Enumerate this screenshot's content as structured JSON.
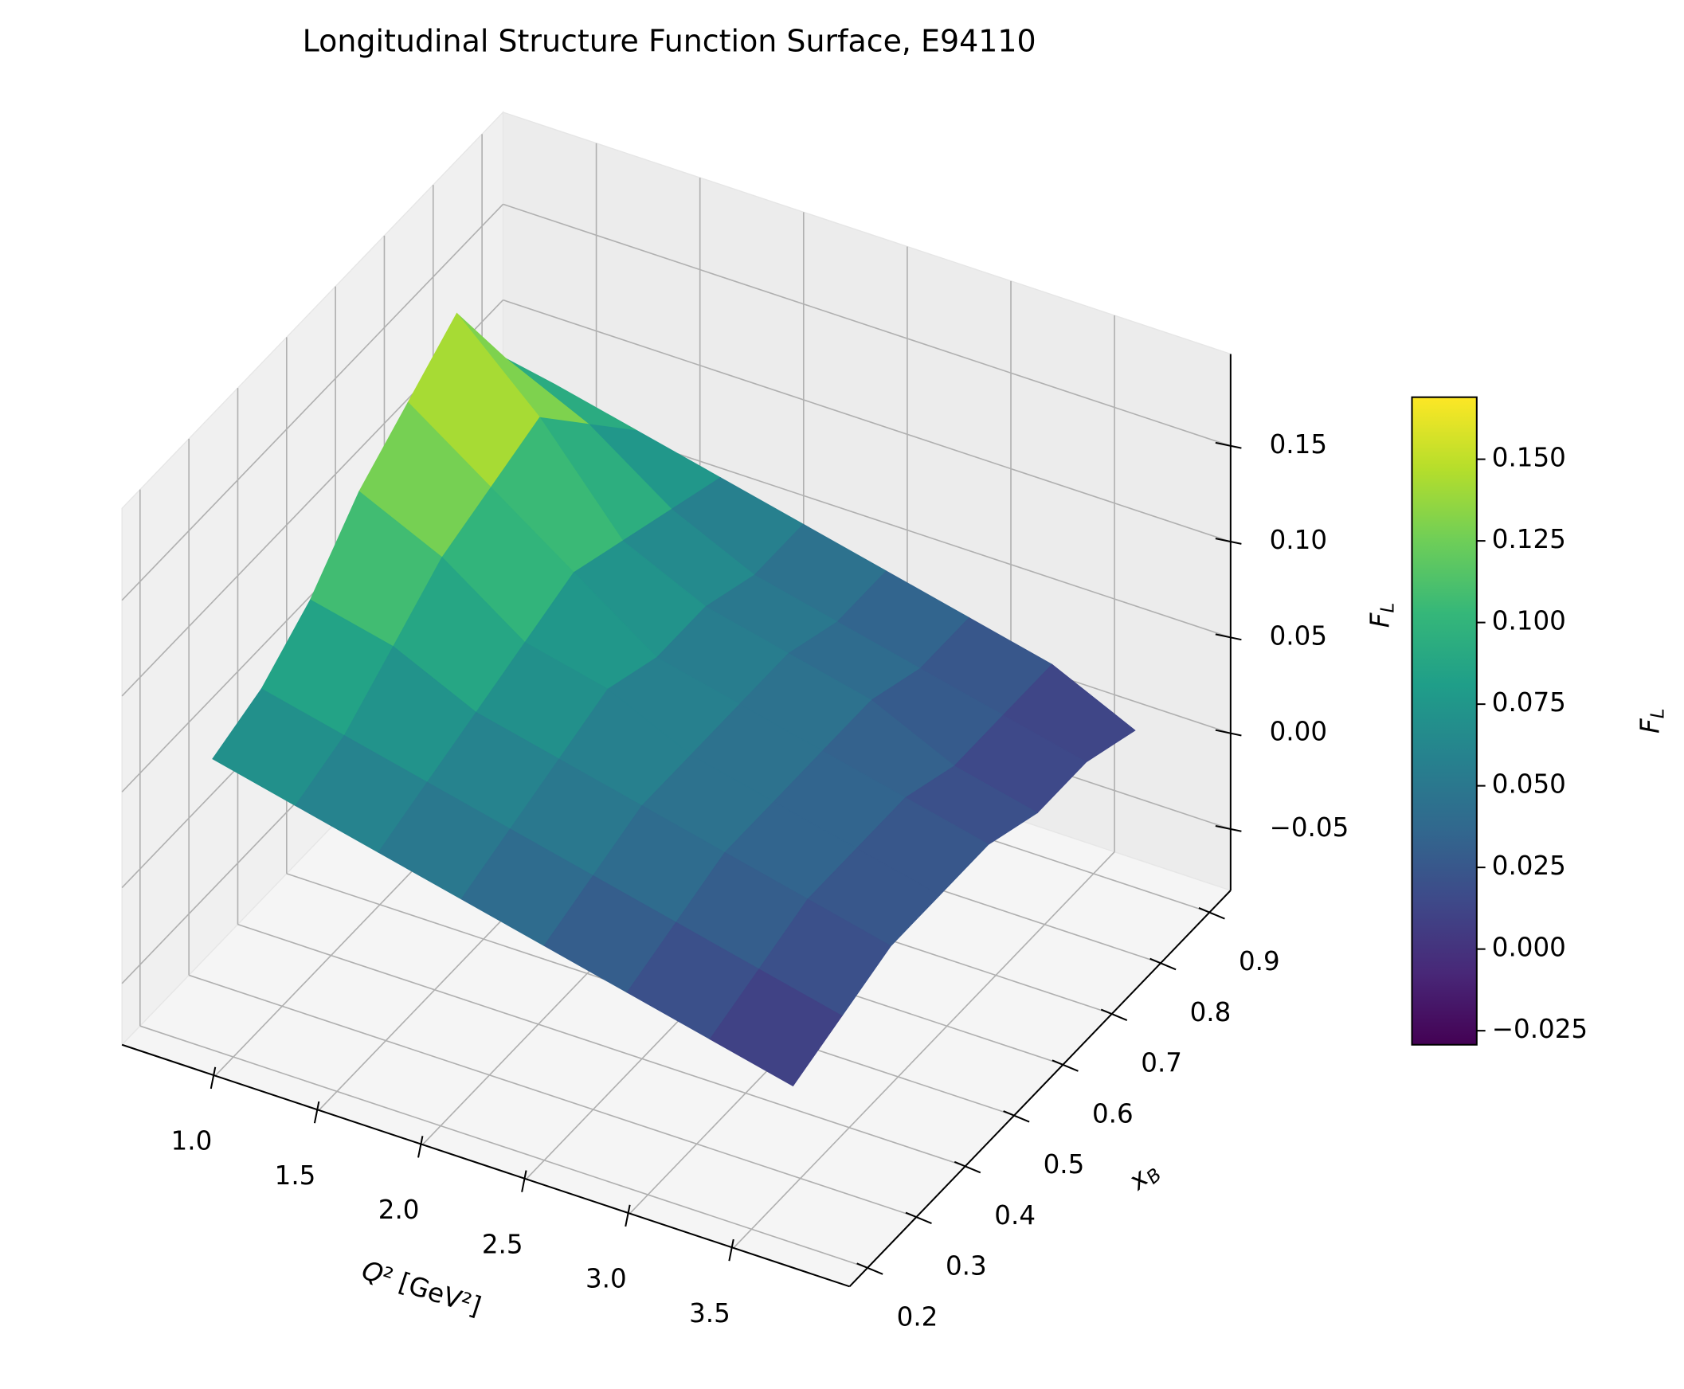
{
  "chart_data": {
    "type": "surface",
    "title": "Longitudinal Structure Function Surface, E94110",
    "xlabel": "Q² [GeV²]",
    "ylabel": "xB",
    "zlabel": "FL",
    "x": [
      0.9,
      1.3,
      1.7,
      2.1,
      2.5,
      2.9,
      3.3,
      3.7
    ],
    "y": [
      0.2,
      0.3,
      0.4,
      0.5,
      0.6,
      0.7,
      0.8,
      0.9
    ],
    "z": [
      [
        0.07,
        0.06,
        0.05,
        0.04,
        0.03,
        0.02,
        0.01,
        0.0
      ],
      [
        0.08,
        0.07,
        0.06,
        0.05,
        0.04,
        0.03,
        0.02,
        0.01
      ],
      [
        0.1,
        0.09,
        0.07,
        0.06,
        0.05,
        0.04,
        0.03,
        0.02
      ],
      [
        0.13,
        0.11,
        0.08,
        0.07,
        0.05,
        0.04,
        0.03,
        0.02
      ],
      [
        0.15,
        0.12,
        0.09,
        0.06,
        0.05,
        0.04,
        0.03,
        0.02
      ],
      [
        0.17,
        0.13,
        0.08,
        0.06,
        0.05,
        0.04,
        0.02,
        0.01
      ],
      [
        0.12,
        0.1,
        0.07,
        0.05,
        0.04,
        0.03,
        0.02,
        0.01
      ],
      [
        0.08,
        0.07,
        0.06,
        0.05,
        0.04,
        0.03,
        0.02,
        0.0
      ]
    ],
    "colormap": "viridis",
    "xlim": [
      0.55,
      4.06
    ],
    "ylim": [
      0.163,
      0.943
    ],
    "zlim": [
      -0.082,
      0.198
    ],
    "xticks": [
      {
        "value": 1,
        "label": "1.0"
      },
      1.5,
      {
        "value": 2,
        "label": "2.0"
      },
      2.5,
      {
        "value": 3,
        "label": "3.0"
      },
      3.5
    ],
    "yticks": [
      0.2,
      0.3,
      0.4,
      0.5,
      0.6,
      0.7,
      0.8,
      0.9
    ],
    "zticks": [
      {
        "value": -0.05,
        "label": "−0.05"
      },
      {
        "value": 0,
        "label": "0.00"
      },
      0.05,
      {
        "value": 0.1,
        "label": "0.10"
      },
      0.15
    ],
    "grid": true,
    "colorbar": {
      "label": "FL",
      "clim": [
        -0.0293,
        0.169
      ],
      "ticks": [
        {
          "value": -0.025,
          "label": "−0.025"
        },
        {
          "value": 0,
          "label": "0.000"
        },
        0.025,
        {
          "value": 0.05,
          "label": "0.050"
        },
        0.075,
        {
          "value": 0.1,
          "label": "0.100"
        },
        0.125,
        {
          "value": 0.15,
          "label": "0.150"
        }
      ]
    }
  }
}
